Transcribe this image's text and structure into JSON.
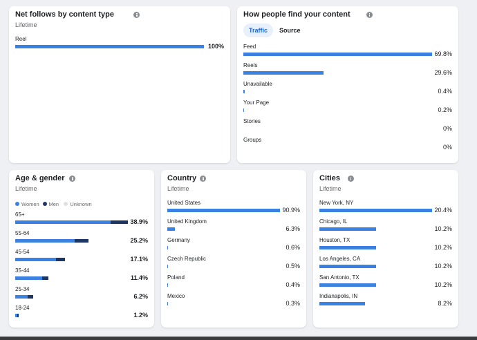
{
  "panels": [
    {
      "title": "Net follows by content type",
      "subtitle": "Lifetime",
      "color": "#3b82e0",
      "rows": [
        {
          "label": "Reel",
          "value": 100,
          "value_label": "100%"
        }
      ]
    },
    {
      "title": "How people find your content",
      "tabs": [
        "Traffic",
        "Source"
      ],
      "active_tab": 0,
      "color": "#3b82e0",
      "rows": [
        {
          "label": "Feed",
          "value": 69.8,
          "value_label": "69.8%"
        },
        {
          "label": "Reels",
          "value": 29.6,
          "value_label": "29.6%"
        },
        {
          "label": "Unavailable",
          "value": 0.4,
          "value_label": "0.4%"
        },
        {
          "label": "Your Page",
          "value": 0.2,
          "value_label": "0.2%"
        },
        {
          "label": "Stories",
          "value": 0,
          "value_label": "0%"
        },
        {
          "label": "Groups",
          "value": 0,
          "value_label": "0%"
        }
      ]
    },
    {
      "title": "Age & gender",
      "subtitle": "Lifetime",
      "series": [
        {
          "name": "Women",
          "color": "#3b82e0"
        },
        {
          "name": "Men",
          "color": "#1c3563"
        },
        {
          "name": "Unknown",
          "color": "#dde1e6"
        }
      ],
      "rows": [
        {
          "label": "65+",
          "segments": [
            32.9,
            6.0,
            0
          ],
          "total": 38.9,
          "total_label": "38.9%"
        },
        {
          "label": "55-64",
          "segments": [
            20.5,
            4.7,
            0
          ],
          "total": 25.2,
          "total_label": "25.2%"
        },
        {
          "label": "45-54",
          "segments": [
            14.0,
            3.1,
            0
          ],
          "total": 17.1,
          "total_label": "17.1%"
        },
        {
          "label": "35-44",
          "segments": [
            9.2,
            2.2,
            0
          ],
          "total": 11.4,
          "total_label": "11.4%"
        },
        {
          "label": "25-34",
          "segments": [
            4.3,
            1.9,
            0
          ],
          "total": 6.2,
          "total_label": "6.2%"
        },
        {
          "label": "18-24",
          "segments": [
            0.7,
            0.5,
            0
          ],
          "total": 1.2,
          "total_label": "1.2%"
        }
      ]
    },
    {
      "title": "Country",
      "subtitle": "Lifetime",
      "color": "#3b82e0",
      "rows": [
        {
          "label": "United States",
          "value": 90.9,
          "value_label": "90.9%"
        },
        {
          "label": "United Kingdom",
          "value": 6.3,
          "value_label": "6.3%"
        },
        {
          "label": "Germany",
          "value": 0.6,
          "value_label": "0.6%"
        },
        {
          "label": "Czech Republic",
          "value": 0.5,
          "value_label": "0.5%"
        },
        {
          "label": "Poland",
          "value": 0.4,
          "value_label": "0.4%"
        },
        {
          "label": "Mexico",
          "value": 0.3,
          "value_label": "0.3%"
        }
      ]
    },
    {
      "title": "Cities",
      "subtitle": "Lifetime",
      "color": "#3b82e0",
      "rows": [
        {
          "label": "New York, NY",
          "value": 20.4,
          "value_label": "20.4%"
        },
        {
          "label": "Chicago, IL",
          "value": 10.2,
          "value_label": "10.2%"
        },
        {
          "label": "Houston, TX",
          "value": 10.2,
          "value_label": "10.2%"
        },
        {
          "label": "Los Angeles, CA",
          "value": 10.2,
          "value_label": "10.2%"
        },
        {
          "label": "San Antonio, TX",
          "value": 10.2,
          "value_label": "10.2%"
        },
        {
          "label": "Indianapolis, IN",
          "value": 8.2,
          "value_label": "8.2%"
        }
      ]
    }
  ]
}
